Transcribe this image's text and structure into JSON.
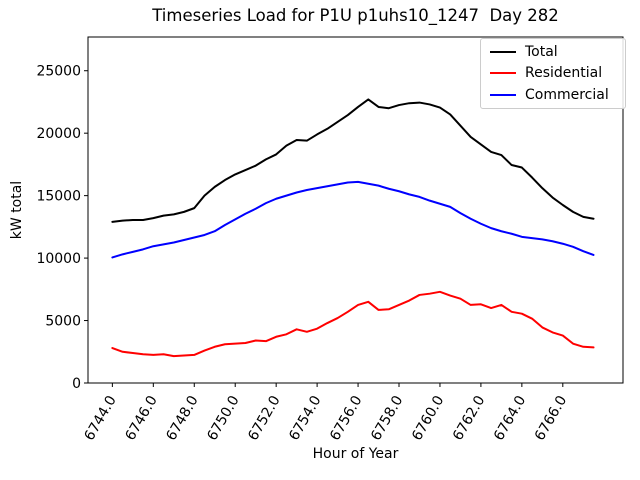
{
  "chart_data": {
    "type": "line",
    "title": "Timeseries Load for P1U p1uhs10_1247  Day 282",
    "xlabel": "Hour of Year",
    "ylabel": "kW total",
    "xlim": [
      6742.81,
      6768.94
    ],
    "ylim": [
      0,
      27700
    ],
    "grid": false,
    "legend_position": "upper right",
    "x_ticks": [
      6744,
      6746,
      6748,
      6750,
      6752,
      6754,
      6756,
      6758,
      6760,
      6762,
      6764,
      6766
    ],
    "x_tick_labels": [
      "6744.0",
      "6746.0",
      "6748.0",
      "6750.0",
      "6752.0",
      "6754.0",
      "6756.0",
      "6758.0",
      "6760.0",
      "6762.0",
      "6764.0",
      "6766.0"
    ],
    "y_ticks": [
      0,
      5000,
      10000,
      15000,
      20000,
      25000
    ],
    "y_tick_labels": [
      "0",
      "5000",
      "10000",
      "15000",
      "20000",
      "25000"
    ],
    "x": [
      6744.0,
      6744.5,
      6745.0,
      6745.5,
      6746.0,
      6746.5,
      6747.0,
      6747.5,
      6748.0,
      6748.5,
      6749.0,
      6749.5,
      6750.0,
      6750.5,
      6751.0,
      6751.5,
      6752.0,
      6752.5,
      6753.0,
      6753.5,
      6754.0,
      6754.5,
      6755.0,
      6755.5,
      6756.0,
      6756.5,
      6757.0,
      6757.5,
      6758.0,
      6758.5,
      6759.0,
      6759.5,
      6760.0,
      6760.5,
      6761.0,
      6761.5,
      6762.0,
      6762.5,
      6763.0,
      6763.5,
      6764.0,
      6764.5,
      6765.0,
      6765.5,
      6766.0,
      6766.5,
      6767.0,
      6767.5
    ],
    "series": [
      {
        "name": "Total",
        "color": "#000000",
        "values": [
          12900,
          13000,
          13050,
          13050,
          13200,
          13400,
          13500,
          13700,
          14000,
          15000,
          15700,
          16250,
          16700,
          17050,
          17400,
          17900,
          18300,
          19000,
          19450,
          19400,
          19900,
          20350,
          20900,
          21450,
          22100,
          22700,
          22100,
          22000,
          22250,
          22400,
          22450,
          22300,
          22050,
          21500,
          20600,
          19700,
          19100,
          18500,
          18250,
          17450,
          17250,
          16450,
          15600,
          14850,
          14250,
          13700,
          13300,
          13150
        ]
      },
      {
        "name": "Residential",
        "color": "#ff0000",
        "values": [
          2800,
          2500,
          2400,
          2300,
          2250,
          2300,
          2150,
          2200,
          2250,
          2600,
          2900,
          3100,
          3150,
          3200,
          3400,
          3350,
          3700,
          3900,
          4300,
          4100,
          4350,
          4800,
          5200,
          5700,
          6250,
          6500,
          5850,
          5900,
          6250,
          6600,
          7050,
          7150,
          7300,
          7000,
          6750,
          6250,
          6300,
          6000,
          6250,
          5700,
          5550,
          5150,
          4450,
          4050,
          3800,
          3150,
          2900,
          2850
        ]
      },
      {
        "name": "Commercial",
        "color": "#0000ff",
        "values": [
          10050,
          10300,
          10500,
          10700,
          10950,
          11100,
          11250,
          11450,
          11650,
          11850,
          12150,
          12650,
          13100,
          13550,
          13950,
          14400,
          14750,
          15000,
          15250,
          15450,
          15600,
          15750,
          15900,
          16050,
          16100,
          15950,
          15800,
          15550,
          15350,
          15100,
          14900,
          14600,
          14350,
          14100,
          13600,
          13150,
          12750,
          12400,
          12150,
          11950,
          11700,
          11600,
          11500,
          11350,
          11150,
          10900,
          10550,
          10250
        ]
      }
    ]
  }
}
